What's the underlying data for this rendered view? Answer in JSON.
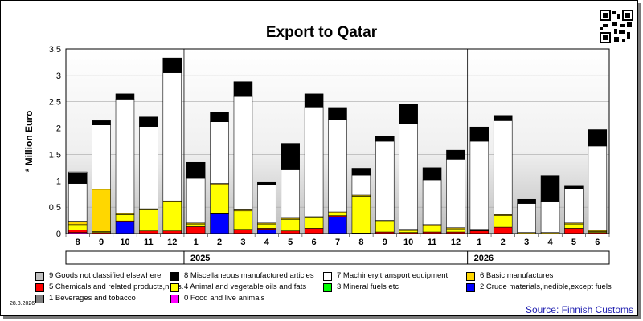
{
  "title": "Export to Qatar",
  "date_stamp": "28.8.2026",
  "source": "Source: Finnish Customs",
  "colors": {
    "c9": "#c0c0c0",
    "c8": "#000000",
    "c7": "#ffffff",
    "c6": "#ffd700",
    "c5": "#ff0000",
    "c4": "#ffff00",
    "c3": "#00ff00",
    "c2": "#0000ff",
    "c1": "#808080",
    "c0": "#ff00ff"
  },
  "legend": [
    {
      "key": "c9",
      "label": "9 Goods not classified elsewhere"
    },
    {
      "key": "c8",
      "label": "8 Miscellaneous manufactured articles"
    },
    {
      "key": "c7",
      "label": "7 Machinery,transport equipment"
    },
    {
      "key": "c6",
      "label": "6 Basic manufactures"
    },
    {
      "key": "c5",
      "label": "5 Chemicals and related products,n.e.s."
    },
    {
      "key": "c4",
      "label": "4 Animal and vegetable oils and fats"
    },
    {
      "key": "c3",
      "label": "3 Mineral fuels etc"
    },
    {
      "key": "c2",
      "label": "2 Crude materials,inedible,except fuels"
    },
    {
      "key": "c1",
      "label": "1 Beverages and tobacco"
    },
    {
      "key": "c0",
      "label": "0 Food and live animals"
    }
  ],
  "chart_data": {
    "type": "bar",
    "stacked": true,
    "ylabel": "* Million Euro",
    "ylim": [
      0,
      3.5
    ],
    "yticks": [
      "0",
      "0.5",
      "1",
      "1.5",
      "2",
      "2.5",
      "3",
      "3.5"
    ],
    "categories": [
      "8",
      "9",
      "10",
      "11",
      "12",
      "1",
      "2",
      "3",
      "4",
      "5",
      "6",
      "7",
      "8",
      "9",
      "10",
      "11",
      "12",
      "1",
      "2",
      "3",
      "4",
      "5",
      "6"
    ],
    "years": [
      {
        "label": "2025",
        "start": 5,
        "end": 16
      },
      {
        "label": "2026",
        "start": 17,
        "end": 22
      }
    ],
    "series": [
      {
        "name": "0 Food and live animals",
        "key": "c0",
        "values": [
          0.02,
          0,
          0,
          0,
          0,
          0,
          0,
          0,
          0,
          0,
          0,
          0,
          0,
          0,
          0,
          0,
          0,
          0,
          0,
          0,
          0,
          0,
          0
        ]
      },
      {
        "name": "1 Beverages and tobacco",
        "key": "c1",
        "values": [
          0,
          0,
          0,
          0,
          0,
          0,
          0,
          0,
          0,
          0,
          0,
          0,
          0,
          0,
          0,
          0,
          0,
          0,
          0,
          0,
          0,
          0,
          0
        ]
      },
      {
        "name": "2 Crude materials,inedible,except fuels",
        "key": "c2",
        "values": [
          0,
          0,
          0.22,
          0,
          0,
          0,
          0.37,
          0,
          0.08,
          0,
          0,
          0.32,
          0,
          0,
          0,
          0,
          0,
          0,
          0,
          0,
          0,
          0,
          0
        ]
      },
      {
        "name": "3 Mineral fuels etc",
        "key": "c3",
        "values": [
          0,
          0,
          0,
          0,
          0,
          0,
          0,
          0,
          0,
          0,
          0,
          0,
          0,
          0,
          0,
          0,
          0,
          0,
          0,
          0,
          0,
          0,
          0
        ]
      },
      {
        "name": "5 Chemicals and related products,n.e.s.",
        "key": "c5",
        "values": [
          0.05,
          0.02,
          0.02,
          0.05,
          0.05,
          0.13,
          0.01,
          0.08,
          0.02,
          0.05,
          0.1,
          0.02,
          0.01,
          0.03,
          0.02,
          0.03,
          0.03,
          0.05,
          0.12,
          0,
          0,
          0.1,
          0.02
        ]
      },
      {
        "name": "4 Animal and vegetable oils and fats",
        "key": "c4",
        "values": [
          0.1,
          0.02,
          0.12,
          0.4,
          0.55,
          0.05,
          0.55,
          0.35,
          0.08,
          0.22,
          0.2,
          0.05,
          0.7,
          0.2,
          0.04,
          0.12,
          0.06,
          0.01,
          0.22,
          0,
          0,
          0.08,
          0.02
        ]
      },
      {
        "name": "6 Basic manufactures",
        "key": "c6",
        "values": [
          0.05,
          0.8,
          0.02,
          0.02,
          0.02,
          0.02,
          0.02,
          0.02,
          0.02,
          0.02,
          0.02,
          0.02,
          0.02,
          0.02,
          0.02,
          0.02,
          0.02,
          0.02,
          0.02,
          0.02,
          0.02,
          0.02,
          0.02
        ]
      },
      {
        "name": "7 Machinery,transport equipment",
        "key": "c7",
        "values": [
          0.73,
          1.22,
          2.17,
          1.56,
          2.43,
          0.85,
          1.17,
          2.15,
          0.72,
          0.92,
          2.08,
          1.75,
          0.38,
          1.5,
          2.0,
          0.85,
          1.3,
          1.67,
          1.78,
          0.55,
          0.58,
          0.65,
          1.6
        ]
      },
      {
        "name": "8 Miscellaneous manufactured articles",
        "key": "c8",
        "values": [
          0.2,
          0.08,
          0.1,
          0.18,
          0.28,
          0.3,
          0.18,
          0.28,
          0.05,
          0.5,
          0.25,
          0.23,
          0.13,
          0.1,
          0.38,
          0.23,
          0.17,
          0.27,
          0.1,
          0.08,
          0.5,
          0.05,
          0.31
        ]
      },
      {
        "name": "9 Goods not classified elsewhere",
        "key": "c9",
        "values": [
          0.02,
          0,
          0,
          0,
          0,
          0,
          0,
          0,
          0,
          0,
          0,
          0,
          0,
          0,
          0,
          0,
          0,
          0,
          0,
          0,
          0,
          0,
          0
        ]
      }
    ]
  }
}
